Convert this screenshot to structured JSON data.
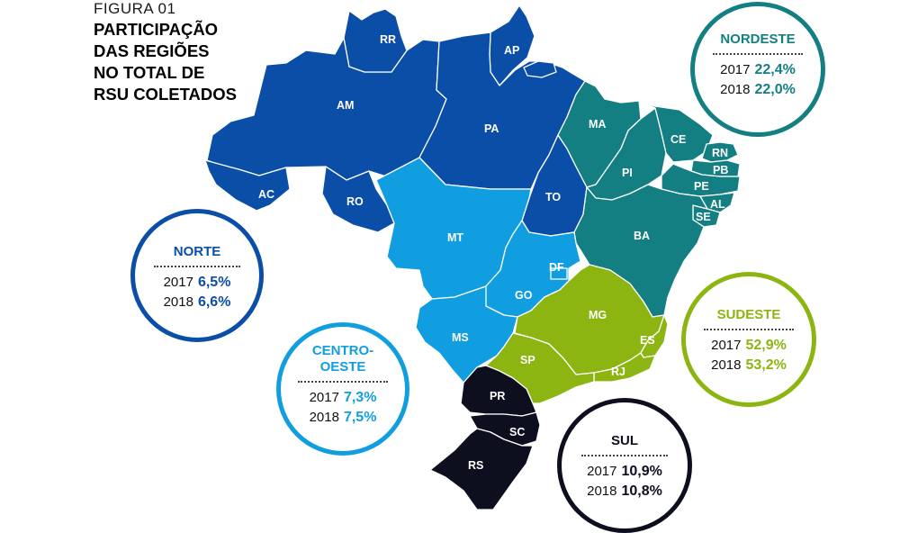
{
  "figure": {
    "label": "FIGURA 01",
    "heading": "PARTICIPAÇÃO DAS REGIÕES NO TOTAL DE RSU COLETADOS"
  },
  "colors": {
    "norte": "#0a4ea8",
    "nordeste": "#137f83",
    "centro_oeste": "#119ee0",
    "sudeste": "#8cb512",
    "sul": "#0d0f1f"
  },
  "states": {
    "rr": "RR",
    "ap": "AP",
    "am": "AM",
    "pa": "PA",
    "ac": "AC",
    "ro": "RO",
    "to": "TO",
    "ma": "MA",
    "ce": "CE",
    "rn": "RN",
    "pb": "PB",
    "pi": "PI",
    "pe": "PE",
    "al": "AL",
    "se": "SE",
    "ba": "BA",
    "mt": "MT",
    "df": "DF",
    "go": "GO",
    "ms": "MS",
    "mg": "MG",
    "es": "ES",
    "sp": "SP",
    "rj": "RJ",
    "pr": "PR",
    "sc": "SC",
    "rs": "RS"
  },
  "regions": {
    "nordeste": {
      "name": "NORDESTE",
      "y2017": "2017",
      "v2017": "22,4%",
      "y2018": "2018",
      "v2018": "22,0%"
    },
    "norte": {
      "name": "NORTE",
      "y2017": "2017",
      "v2017": "6,5%",
      "y2018": "2018",
      "v2018": "6,6%"
    },
    "centro_oeste": {
      "name_l1": "CENTRO-",
      "name_l2": "OESTE",
      "y2017": "2017",
      "v2017": "7,3%",
      "y2018": "2018",
      "v2018": "7,5%"
    },
    "sudeste": {
      "name": "SUDESTE",
      "y2017": "2017",
      "v2017": "52,9%",
      "y2018": "2018",
      "v2018": "53,2%"
    },
    "sul": {
      "name": "SUL",
      "y2017": "2017",
      "v2017": "10,9%",
      "y2018": "2018",
      "v2018": "10,8%"
    }
  }
}
